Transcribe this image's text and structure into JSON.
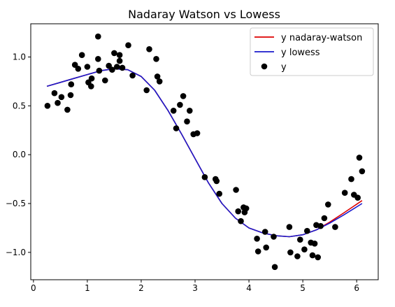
{
  "chart_data": {
    "type": "scatter",
    "title": "Nadaray Watson vs Lowess",
    "xlabel": "",
    "ylabel": "",
    "xlim": [
      -0.05,
      6.4
    ],
    "ylim": [
      -1.28,
      1.34
    ],
    "xticks": [
      0,
      1,
      2,
      3,
      4,
      5,
      6
    ],
    "xtick_labels": [
      "0",
      "1",
      "2",
      "3",
      "4",
      "5",
      "6"
    ],
    "yticks": [
      -1.0,
      -0.5,
      0.0,
      0.5,
      1.0
    ],
    "ytick_labels": [
      "−1.0",
      "−0.5",
      "0.0",
      "0.5",
      "1.0"
    ],
    "grid": false,
    "legend_position": "top-right",
    "series": [
      {
        "name": "y nadaray-watson",
        "kind": "line",
        "color": "#dd0000",
        "x": [
          0.25,
          0.5,
          0.75,
          1.0,
          1.25,
          1.5,
          1.75,
          2.0,
          2.25,
          2.5,
          2.75,
          3.0,
          3.25,
          3.5,
          3.75,
          4.0,
          4.25,
          4.5,
          4.75,
          5.0,
          5.25,
          5.5,
          5.75,
          6.1
        ],
        "y": [
          0.7,
          0.74,
          0.78,
          0.82,
          0.86,
          0.88,
          0.87,
          0.8,
          0.66,
          0.45,
          0.21,
          -0.04,
          -0.29,
          -0.5,
          -0.65,
          -0.75,
          -0.8,
          -0.83,
          -0.84,
          -0.82,
          -0.77,
          -0.69,
          -0.6,
          -0.47
        ]
      },
      {
        "name": "y lowess",
        "kind": "line",
        "color": "#1a1acc",
        "x": [
          0.25,
          0.5,
          0.75,
          1.0,
          1.25,
          1.5,
          1.75,
          2.0,
          2.25,
          2.5,
          2.75,
          3.0,
          3.25,
          3.5,
          3.75,
          4.0,
          4.25,
          4.5,
          4.75,
          5.0,
          5.25,
          5.5,
          5.75,
          6.1
        ],
        "y": [
          0.7,
          0.74,
          0.78,
          0.82,
          0.86,
          0.88,
          0.87,
          0.8,
          0.66,
          0.45,
          0.21,
          -0.04,
          -0.29,
          -0.5,
          -0.65,
          -0.75,
          -0.8,
          -0.83,
          -0.84,
          -0.82,
          -0.77,
          -0.7,
          -0.62,
          -0.5
        ]
      },
      {
        "name": "y",
        "kind": "scatter",
        "color": "#000000",
        "x": [
          0.26,
          0.39,
          0.45,
          0.52,
          0.63,
          0.69,
          0.7,
          0.77,
          0.83,
          0.9,
          1.0,
          1.02,
          1.07,
          1.08,
          1.2,
          1.2,
          1.22,
          1.33,
          1.4,
          1.46,
          1.5,
          1.55,
          1.6,
          1.6,
          1.65,
          1.76,
          1.84,
          2.1,
          2.15,
          2.28,
          2.3,
          2.34,
          2.6,
          2.65,
          2.72,
          2.78,
          2.85,
          2.9,
          2.97,
          3.04,
          3.18,
          3.38,
          3.4,
          3.45,
          3.76,
          3.8,
          3.85,
          3.9,
          3.92,
          3.95,
          4.15,
          4.17,
          4.3,
          4.32,
          4.46,
          4.48,
          4.75,
          4.77,
          4.9,
          4.95,
          5.03,
          5.08,
          5.15,
          5.18,
          5.22,
          5.25,
          5.28,
          5.33,
          5.4,
          5.47,
          5.6,
          5.78,
          5.9,
          5.95,
          6.02,
          6.05,
          6.1
        ],
        "y": [
          0.5,
          0.63,
          0.53,
          0.59,
          0.46,
          0.61,
          0.72,
          0.92,
          0.88,
          1.02,
          0.9,
          0.74,
          0.7,
          0.78,
          0.98,
          1.21,
          0.86,
          0.76,
          0.91,
          0.87,
          1.04,
          0.9,
          1.02,
          0.96,
          0.89,
          1.12,
          0.81,
          0.66,
          1.08,
          0.98,
          0.8,
          0.75,
          0.45,
          0.27,
          0.51,
          0.6,
          0.34,
          0.45,
          0.21,
          0.22,
          -0.23,
          -0.25,
          -0.27,
          -0.4,
          -0.36,
          -0.58,
          -0.68,
          -0.54,
          -0.59,
          -0.55,
          -0.86,
          -0.99,
          -0.79,
          -0.95,
          -0.84,
          -1.15,
          -0.74,
          -1.0,
          -1.04,
          -0.87,
          -0.97,
          -0.78,
          -0.9,
          -1.03,
          -0.91,
          -0.72,
          -1.05,
          -0.73,
          -0.65,
          -0.51,
          -0.74,
          -0.39,
          -0.25,
          -0.41,
          -0.44,
          -0.03,
          -0.17
        ]
      }
    ]
  }
}
